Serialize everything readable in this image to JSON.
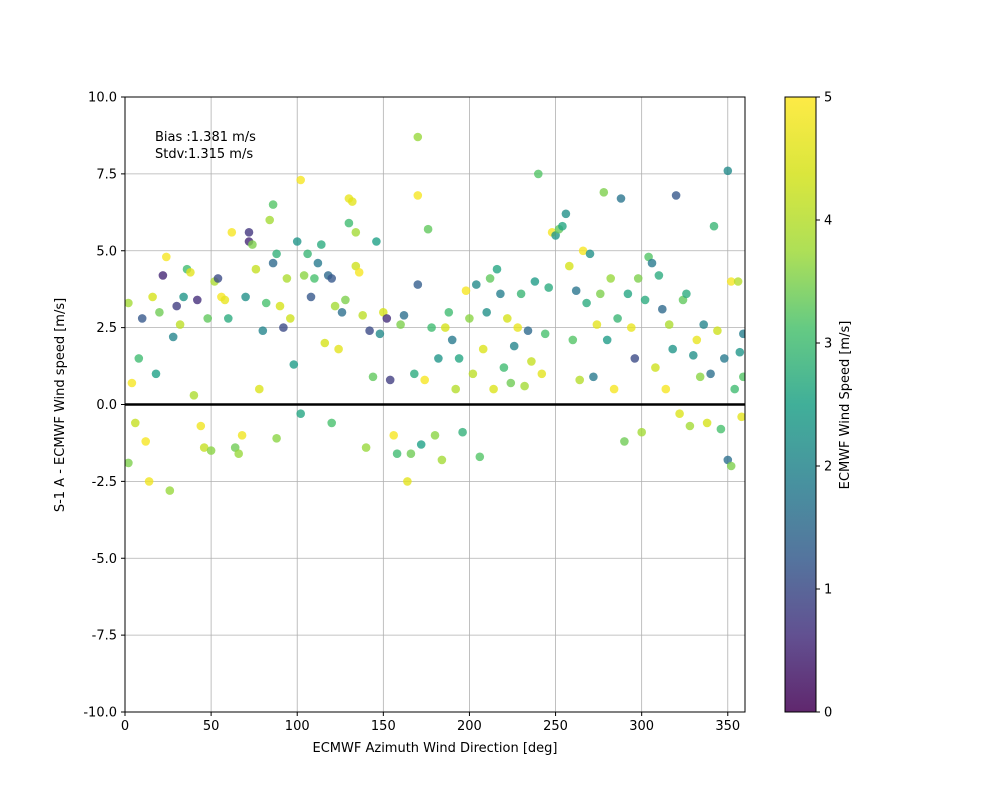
{
  "chart_data": {
    "type": "scatter",
    "title": "",
    "xlabel": "ECMWF Azimuth Wind Direction [deg]",
    "ylabel": "S-1 A - ECMWF Wind speed [m/s]",
    "xlim": [
      0,
      360
    ],
    "ylim": [
      -10,
      10
    ],
    "xticks": [
      0,
      50,
      100,
      150,
      200,
      250,
      300,
      350
    ],
    "yticks": [
      -10.0,
      -7.5,
      -5.0,
      -2.5,
      0.0,
      2.5,
      5.0,
      7.5,
      10.0
    ],
    "grid": true,
    "reference_line_y": 0,
    "annotation": [
      "Bias :1.381 m/s",
      "Stdv:1.315 m/s"
    ],
    "colorbar": {
      "label": "ECMWF Wind Speed [m/s]",
      "range": [
        0,
        5
      ],
      "ticks": [
        0,
        1,
        2,
        3,
        4,
        5
      ],
      "colormap": "viridis"
    },
    "marker_alpha": 0.8,
    "sampled_points": {
      "columns": [
        "direction_deg",
        "speed_diff_ms",
        "ecmwf_wind_speed_ms"
      ],
      "points": [
        [
          2,
          3.3,
          3.8
        ],
        [
          2,
          -1.9,
          3.5
        ],
        [
          4,
          0.7,
          4.9
        ],
        [
          6,
          -0.6,
          4.2
        ],
        [
          8,
          1.5,
          3.0
        ],
        [
          10,
          2.8,
          1.2
        ],
        [
          12,
          -1.2,
          4.9
        ],
        [
          14,
          -2.5,
          4.8
        ],
        [
          16,
          3.5,
          4.4
        ],
        [
          18,
          1.0,
          2.5
        ],
        [
          20,
          3.0,
          3.4
        ],
        [
          22,
          4.2,
          0.5
        ],
        [
          24,
          4.8,
          4.9
        ],
        [
          26,
          -2.8,
          3.7
        ],
        [
          28,
          2.2,
          2.0
        ],
        [
          30,
          3.2,
          0.8
        ],
        [
          32,
          2.6,
          4.1
        ],
        [
          34,
          3.5,
          2.3
        ],
        [
          36,
          4.4,
          3.0
        ],
        [
          38,
          4.3,
          4.6
        ],
        [
          40,
          0.3,
          3.9
        ],
        [
          42,
          3.4,
          0.6
        ],
        [
          44,
          -0.7,
          4.8
        ],
        [
          46,
          -1.4,
          4.2
        ],
        [
          48,
          2.8,
          3.3
        ],
        [
          50,
          -1.5,
          3.6
        ],
        [
          52,
          4.0,
          3.9
        ],
        [
          54,
          4.1,
          1.0
        ],
        [
          56,
          3.5,
          4.9
        ],
        [
          58,
          3.4,
          4.7
        ],
        [
          60,
          2.8,
          2.7
        ],
        [
          62,
          5.6,
          4.9
        ],
        [
          64,
          -1.4,
          3.4
        ],
        [
          66,
          -1.6,
          3.7
        ],
        [
          68,
          -1.0,
          4.8
        ],
        [
          70,
          3.5,
          2.2
        ],
        [
          72,
          5.6,
          0.7
        ],
        [
          72,
          5.3,
          0.5
        ],
        [
          74,
          5.2,
          3.5
        ],
        [
          76,
          4.4,
          4.2
        ],
        [
          78,
          0.5,
          4.5
        ],
        [
          80,
          2.4,
          2.0
        ],
        [
          82,
          3.3,
          3.1
        ],
        [
          84,
          6.0,
          3.8
        ],
        [
          86,
          6.5,
          3.2
        ],
        [
          86,
          4.6,
          1.5
        ],
        [
          88,
          4.9,
          2.8
        ],
        [
          88,
          -1.1,
          3.6
        ],
        [
          90,
          3.2,
          4.4
        ],
        [
          92,
          2.5,
          1.0
        ],
        [
          94,
          4.1,
          3.9
        ],
        [
          96,
          2.8,
          4.3
        ],
        [
          98,
          1.3,
          2.4
        ],
        [
          100,
          5.3,
          2.3
        ],
        [
          102,
          7.3,
          4.9
        ],
        [
          102,
          -0.3,
          2.6
        ],
        [
          104,
          4.2,
          3.6
        ],
        [
          106,
          4.9,
          2.9
        ],
        [
          108,
          3.5,
          1.2
        ],
        [
          110,
          4.1,
          3.1
        ],
        [
          112,
          4.6,
          1.8
        ],
        [
          114,
          5.2,
          2.7
        ],
        [
          116,
          2.0,
          4.4
        ],
        [
          118,
          4.2,
          1.5
        ],
        [
          120,
          4.1,
          1.2
        ],
        [
          120,
          -0.6,
          3.1
        ],
        [
          122,
          3.2,
          3.8
        ],
        [
          124,
          1.8,
          4.6
        ],
        [
          126,
          3.0,
          1.6
        ],
        [
          128,
          3.4,
          3.5
        ],
        [
          130,
          6.7,
          4.7
        ],
        [
          130,
          5.9,
          3.0
        ],
        [
          132,
          6.6,
          4.6
        ],
        [
          134,
          5.6,
          3.8
        ],
        [
          134,
          4.5,
          4.3
        ],
        [
          136,
          4.3,
          4.9
        ],
        [
          138,
          2.9,
          4.1
        ],
        [
          140,
          -1.4,
          3.7
        ],
        [
          142,
          2.4,
          1.0
        ],
        [
          144,
          0.9,
          3.3
        ],
        [
          146,
          5.3,
          2.5
        ],
        [
          148,
          2.3,
          2.1
        ],
        [
          150,
          3.0,
          4.4
        ],
        [
          152,
          2.8,
          0.6
        ],
        [
          154,
          0.8,
          0.8
        ],
        [
          156,
          -1.0,
          4.9
        ],
        [
          158,
          -1.6,
          3.0
        ],
        [
          160,
          2.6,
          3.5
        ],
        [
          162,
          2.9,
          1.6
        ],
        [
          164,
          -2.5,
          4.6
        ],
        [
          166,
          -1.6,
          3.4
        ],
        [
          168,
          1.0,
          2.7
        ],
        [
          170,
          8.7,
          3.7
        ],
        [
          170,
          6.8,
          4.9
        ],
        [
          170,
          3.9,
          1.3
        ],
        [
          172,
          -1.3,
          2.5
        ],
        [
          174,
          0.8,
          4.9
        ],
        [
          176,
          5.7,
          3.3
        ],
        [
          178,
          2.5,
          3.0
        ],
        [
          180,
          -1.0,
          3.6
        ],
        [
          182,
          1.5,
          2.3
        ],
        [
          184,
          -1.8,
          3.8
        ],
        [
          186,
          2.5,
          4.4
        ],
        [
          188,
          3.0,
          3.0
        ],
        [
          190,
          2.1,
          1.8
        ],
        [
          192,
          0.5,
          4.0
        ],
        [
          194,
          1.5,
          2.6
        ],
        [
          196,
          -0.9,
          2.8
        ],
        [
          198,
          3.7,
          4.9
        ],
        [
          200,
          2.8,
          3.6
        ],
        [
          202,
          1.0,
          4.1
        ],
        [
          204,
          3.9,
          2.1
        ],
        [
          206,
          -1.7,
          3.2
        ],
        [
          208,
          1.8,
          4.5
        ],
        [
          210,
          3.0,
          2.2
        ],
        [
          212,
          4.1,
          3.3
        ],
        [
          214,
          0.5,
          4.5
        ],
        [
          216,
          4.4,
          2.6
        ],
        [
          218,
          3.6,
          1.9
        ],
        [
          220,
          1.2,
          3.0
        ],
        [
          222,
          2.8,
          4.4
        ],
        [
          224,
          0.7,
          3.4
        ],
        [
          226,
          1.9,
          2.0
        ],
        [
          228,
          2.5,
          4.7
        ],
        [
          230,
          3.6,
          2.9
        ],
        [
          232,
          0.6,
          3.8
        ],
        [
          234,
          2.4,
          1.5
        ],
        [
          236,
          1.4,
          4.2
        ],
        [
          238,
          4.0,
          2.4
        ],
        [
          240,
          7.5,
          3.2
        ],
        [
          242,
          1.0,
          4.6
        ],
        [
          244,
          2.3,
          3.1
        ],
        [
          246,
          3.8,
          2.7
        ],
        [
          248,
          5.6,
          4.9
        ],
        [
          250,
          5.5,
          2.3
        ],
        [
          252,
          5.7,
          3.3
        ],
        [
          254,
          5.8,
          2.6
        ],
        [
          256,
          6.2,
          2.2
        ],
        [
          258,
          4.5,
          4.4
        ],
        [
          260,
          2.1,
          3.2
        ],
        [
          262,
          3.7,
          1.7
        ],
        [
          264,
          0.8,
          4.0
        ],
        [
          266,
          5.0,
          4.9
        ],
        [
          268,
          3.3,
          2.7
        ],
        [
          270,
          4.9,
          2.2
        ],
        [
          272,
          0.9,
          1.8
        ],
        [
          274,
          2.6,
          4.6
        ],
        [
          276,
          3.6,
          3.5
        ],
        [
          278,
          6.9,
          3.5
        ],
        [
          280,
          2.1,
          2.4
        ],
        [
          282,
          4.1,
          3.7
        ],
        [
          284,
          0.5,
          4.9
        ],
        [
          286,
          2.8,
          2.9
        ],
        [
          288,
          6.7,
          1.7
        ],
        [
          290,
          -1.2,
          3.4
        ],
        [
          292,
          3.6,
          2.6
        ],
        [
          294,
          2.5,
          4.7
        ],
        [
          296,
          1.5,
          1.0
        ],
        [
          298,
          4.1,
          3.5
        ],
        [
          300,
          -0.9,
          3.8
        ],
        [
          302,
          3.4,
          2.7
        ],
        [
          304,
          4.8,
          3.2
        ],
        [
          306,
          4.6,
          1.8
        ],
        [
          308,
          1.2,
          4.3
        ],
        [
          310,
          4.2,
          2.7
        ],
        [
          312,
          3.1,
          1.5
        ],
        [
          314,
          0.5,
          4.9
        ],
        [
          316,
          2.6,
          3.9
        ],
        [
          318,
          1.8,
          2.3
        ],
        [
          320,
          6.8,
          1.2
        ],
        [
          322,
          -0.3,
          4.5
        ],
        [
          324,
          3.4,
          3.3
        ],
        [
          326,
          3.6,
          2.7
        ],
        [
          328,
          -0.7,
          3.8
        ],
        [
          330,
          1.6,
          2.2
        ],
        [
          332,
          2.1,
          4.7
        ],
        [
          334,
          0.9,
          3.6
        ],
        [
          336,
          2.6,
          2.0
        ],
        [
          338,
          -0.6,
          4.4
        ],
        [
          340,
          1.0,
          1.6
        ],
        [
          342,
          5.8,
          2.9
        ],
        [
          344,
          2.4,
          4.3
        ],
        [
          346,
          -0.8,
          3.1
        ],
        [
          348,
          1.5,
          1.8
        ],
        [
          350,
          7.6,
          2.1
        ],
        [
          350,
          -1.8,
          1.6
        ],
        [
          352,
          -2.0,
          3.5
        ],
        [
          352,
          4.0,
          4.9
        ],
        [
          354,
          0.5,
          3.0
        ],
        [
          356,
          4.0,
          4.0
        ],
        [
          357,
          1.7,
          2.3
        ],
        [
          358,
          -0.4,
          4.6
        ],
        [
          359,
          0.9,
          3.2
        ],
        [
          359,
          2.3,
          1.9
        ]
      ]
    }
  }
}
